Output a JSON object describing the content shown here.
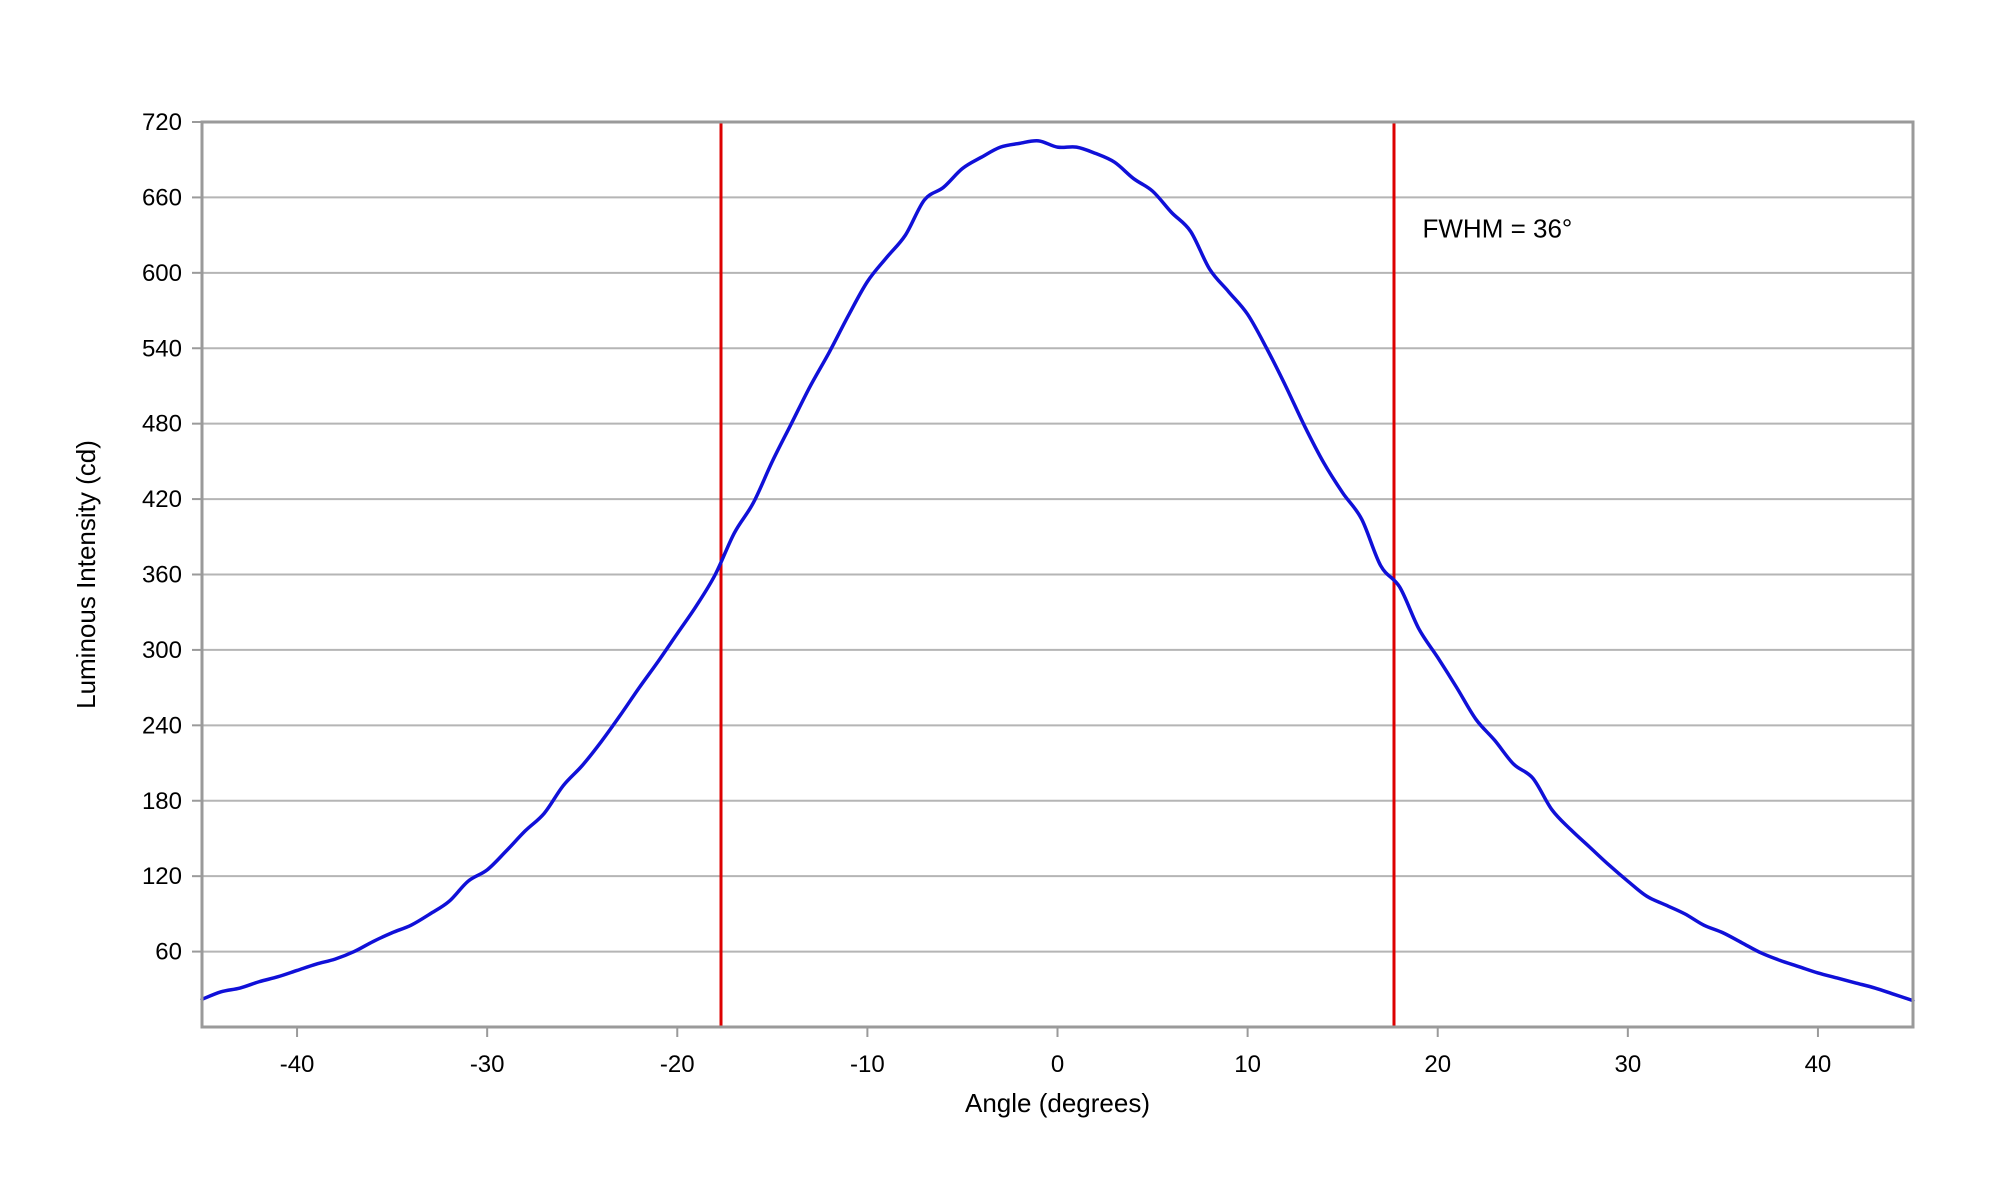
{
  "chart_data": {
    "type": "line",
    "title": "",
    "xlabel": "Angle (degrees)",
    "ylabel": "Luminous Intensity (cd)",
    "xlim": [
      -45,
      45
    ],
    "ylim": [
      0,
      720
    ],
    "x_ticks": [
      -40,
      -30,
      -20,
      -10,
      0,
      10,
      20,
      30,
      40
    ],
    "y_ticks": [
      60,
      120,
      180,
      240,
      300,
      360,
      420,
      480,
      540,
      600,
      660,
      720
    ],
    "grid": true,
    "colors": {
      "curve": "#1010d8",
      "markers": "#dd0000",
      "grid": "#b5b5b5",
      "frame": "#9a9a9a"
    },
    "series": [
      {
        "x": [
          -45,
          -44,
          -43,
          -42,
          -41,
          -40,
          -39,
          -38,
          -37,
          -36,
          -35,
          -34,
          -33,
          -32,
          -31,
          -30,
          -29,
          -28,
          -27,
          -26,
          -25,
          -24,
          -23,
          -22,
          -21,
          -20,
          -19,
          -18,
          -17,
          -16,
          -15,
          -14,
          -13,
          -12,
          -11,
          -10,
          -9,
          -8,
          -7,
          -6,
          -5,
          -4,
          -3,
          -2,
          -1,
          0,
          1,
          2,
          3,
          4,
          5,
          6,
          7,
          8,
          9,
          10,
          11,
          12,
          13,
          14,
          15,
          16,
          17,
          18,
          19,
          20,
          21,
          22,
          23,
          24,
          25,
          26,
          27,
          28,
          29,
          30,
          31,
          32,
          33,
          34,
          35,
          36,
          37,
          38,
          39,
          40,
          41,
          42,
          43,
          44,
          45
        ],
        "y": [
          22,
          28,
          31,
          36,
          40,
          45,
          50,
          54,
          60,
          68,
          75,
          81,
          90,
          100,
          116,
          125,
          140,
          156,
          170,
          192,
          208,
          227,
          248,
          270,
          291,
          313,
          335,
          360,
          393,
          417,
          450,
          480,
          510,
          537,
          566,
          593,
          612,
          630,
          658,
          668,
          683,
          692,
          700,
          703,
          705,
          700,
          700,
          695,
          688,
          675,
          665,
          648,
          633,
          603,
          585,
          567,
          540,
          510,
          478,
          449,
          425,
          404,
          367,
          350,
          317,
          294,
          270,
          245,
          228,
          209,
          198,
          173,
          157,
          143,
          129,
          116,
          104,
          97,
          90,
          81,
          75,
          67,
          59,
          53,
          48,
          43,
          39,
          35,
          31,
          26,
          21
        ]
      }
    ],
    "vertical_markers": [
      -17.7,
      17.7
    ],
    "annotations": [
      {
        "text": "FWHM = 36°",
        "x": 19.2,
        "y": 628
      }
    ]
  }
}
